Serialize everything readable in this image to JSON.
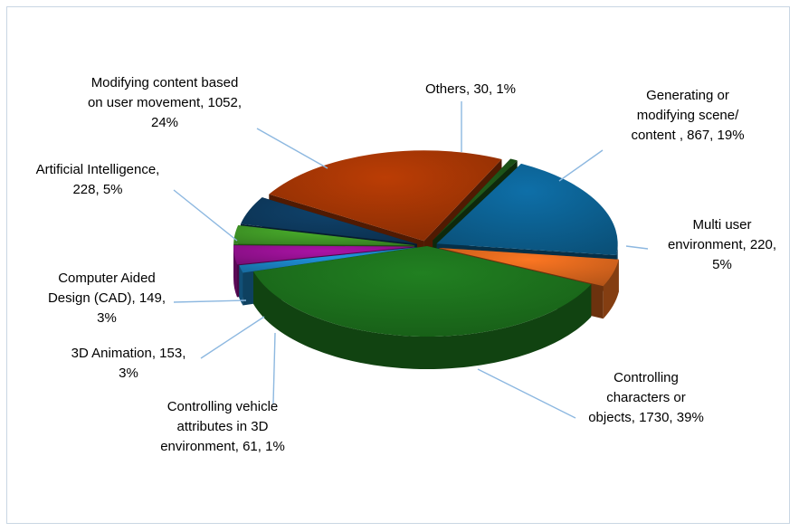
{
  "chart_data": {
    "type": "pie",
    "style": "3d-exploded",
    "legend": "none",
    "slices": [
      {
        "label": "Controlling characters or objects",
        "value": 1730,
        "percent": "39%",
        "color": "#1f7a1f"
      },
      {
        "label": "Controlling vehicle attributes in 3D environment",
        "value": 61,
        "percent": "1%",
        "color": "#1e90d6"
      },
      {
        "label": "3D Animation",
        "value": 153,
        "percent": "3%",
        "color": "#a3129e"
      },
      {
        "label": "Computer Aided Design (CAD)",
        "value": 149,
        "percent": "3%",
        "color": "#46a82a"
      },
      {
        "label": "Artificial Intelligence",
        "value": 228,
        "percent": "5%",
        "color": "#0e3f66"
      },
      {
        "label": "Modifying content based on user movement",
        "value": 1052,
        "percent": "24%",
        "color": "#b23a05"
      },
      {
        "label": "Others",
        "value": 30,
        "percent": "1%",
        "color": "#1f5a1a"
      },
      {
        "label": "Generating or modifying scene/ content ",
        "value": 867,
        "percent": "19%",
        "color": "#0d6aa0"
      },
      {
        "label": "Multi user environment",
        "value": 220,
        "percent": "5%",
        "color": "#f07020"
      }
    ],
    "data_labels": [
      [
        "Controlling",
        "characters or",
        "objects, 1730, 39%"
      ],
      [
        "Controlling vehicle",
        "attributes in 3D",
        "environment, 61, 1%"
      ],
      [
        "3D Animation, 153,",
        "3%"
      ],
      [
        "Computer Aided",
        "Design (CAD), 149,",
        "3%"
      ],
      [
        "Artificial Intelligence,",
        "228, 5%"
      ],
      [
        "Modifying content based",
        "on user movement, 1052,",
        "24%"
      ],
      [
        "Others, 30, 1%"
      ],
      [
        "Generating or",
        "modifying scene/",
        "content , 867, 19%"
      ],
      [
        "Multi user",
        "environment, 220,",
        "5%"
      ]
    ]
  }
}
